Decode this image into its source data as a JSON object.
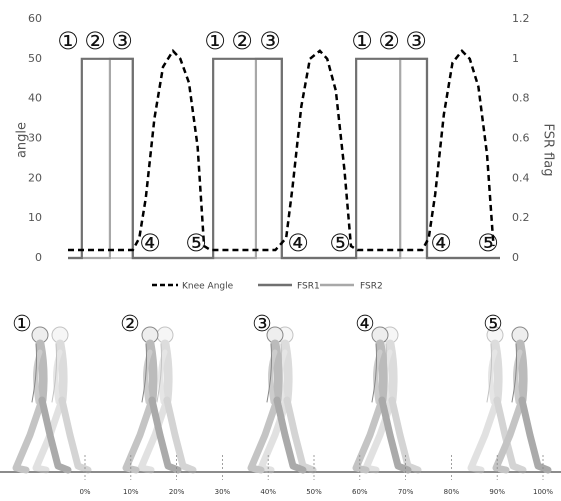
{
  "chart_data": {
    "type": "line",
    "y_label": "angle",
    "y2_label": "FSR flag",
    "xlim": [
      0,
      100
    ],
    "ylim": [
      0,
      60
    ],
    "yticks": [
      0,
      10,
      20,
      30,
      40,
      50,
      60
    ],
    "y2lim": [
      0,
      1.2
    ],
    "y2ticks": [
      0,
      0.2,
      0.4,
      0.6,
      0.8,
      1,
      1.2
    ],
    "grid": false,
    "series": [
      {
        "name": "Knee Angle",
        "color": "#000000",
        "line_style": "dashed",
        "x": [
          0,
          5,
          10,
          15,
          16.5,
          18,
          20,
          22,
          24.3,
          26,
          28,
          30,
          31.5,
          33,
          38,
          43,
          48,
          50.5,
          52,
          54,
          56,
          58.3,
          60,
          62,
          64,
          65.5,
          67,
          72,
          77,
          82,
          83.5,
          85,
          87,
          89,
          91.2,
          93,
          95,
          97,
          98.5
        ],
        "values": [
          2,
          2,
          2,
          2,
          5,
          15,
          35,
          48,
          52,
          50,
          44,
          28,
          3,
          2,
          2,
          2,
          2,
          5,
          18,
          38,
          50,
          52,
          50,
          42,
          22,
          3,
          2,
          2,
          2,
          2,
          5,
          16,
          36,
          49,
          52,
          50,
          43,
          26,
          3
        ]
      },
      {
        "name": "FSR1",
        "color": "#707070",
        "line_style": "solid",
        "axis": "y2",
        "x": [
          0,
          3.2,
          3.2,
          15,
          15,
          33.6,
          33.6,
          49.5,
          49.5,
          66.7,
          66.7,
          83.1,
          83.1,
          100
        ],
        "values": [
          0,
          0,
          1,
          1,
          0,
          0,
          1,
          1,
          0,
          0,
          1,
          1,
          0,
          0
        ]
      },
      {
        "name": "FSR2",
        "color": "#a8a8a8",
        "line_style": "solid",
        "axis": "y2",
        "x": [
          0,
          9.7,
          9.7,
          15,
          15,
          43.5,
          43.5,
          49.5,
          49.5,
          76.9,
          76.9,
          83.1,
          83.1,
          100
        ],
        "values": [
          0,
          0,
          1,
          1,
          0,
          0,
          1,
          1,
          0,
          0,
          1,
          1,
          0,
          0
        ]
      }
    ],
    "annotations": [
      "①",
      "②",
      "③",
      "①",
      "②",
      "③",
      "①",
      "②",
      "③",
      "④",
      "⑤",
      "④",
      "⑤",
      "④",
      "⑤"
    ]
  },
  "gait_figure": {
    "phase_labels": [
      "①",
      "②",
      "③",
      "④",
      "⑤"
    ],
    "percent_ticks": [
      "0%",
      "10%",
      "20%",
      "30%",
      "40%",
      "50%",
      "60%",
      "70%",
      "80%",
      "90%",
      "100%"
    ]
  }
}
